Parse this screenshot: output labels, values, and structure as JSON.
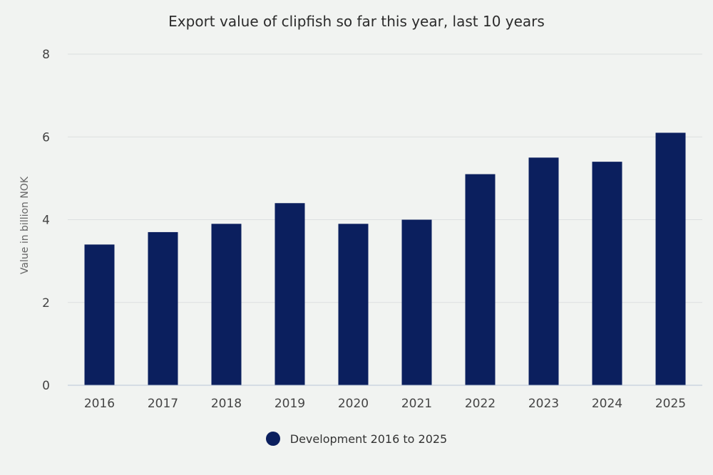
{
  "chart_data": {
    "type": "bar",
    "title": "Export value of clipfish so far this year, last 10 years",
    "ylabel": "Value in billion NOK",
    "xlabel": "",
    "ylim": [
      0,
      8
    ],
    "yticks": [
      0,
      2,
      4,
      6,
      8
    ],
    "categories": [
      "2016",
      "2017",
      "2018",
      "2019",
      "2020",
      "2021",
      "2022",
      "2023",
      "2024",
      "2025"
    ],
    "series": [
      {
        "name": "Development 2016 to 2025",
        "values": [
          3.4,
          3.7,
          3.9,
          4.4,
          3.9,
          4.0,
          5.1,
          5.5,
          5.4,
          6.1
        ]
      }
    ],
    "legend_position": "bottom",
    "grid": true,
    "colors": {
      "bar": "#0b1f5e",
      "grid": "#dcdfe0",
      "axis": "#b9c4d6"
    }
  }
}
